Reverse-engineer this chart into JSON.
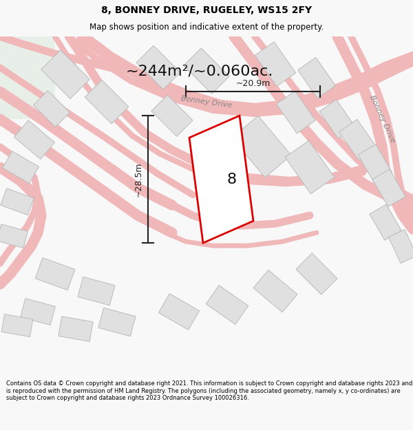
{
  "title": "8, BONNEY DRIVE, RUGELEY, WS15 2FY",
  "subtitle": "Map shows position and indicative extent of the property.",
  "area_text": "~244m²/~0.060ac.",
  "property_number": "8",
  "dim_vertical": "~28.5m",
  "dim_horizontal": "~20.9m",
  "road_label_bottom": "Bonney Drive",
  "road_label_right": "Bonney Drive",
  "footer": "Contains OS data © Crown copyright and database right 2021. This information is subject to Crown copyright and database rights 2023 and is reproduced with the permission of HM Land Registry. The polygons (including the associated geometry, namely x, y co-ordinates) are subject to Crown copyright and database rights 2023 Ordnance Survey 100026316.",
  "bg_color": "#f8f8f8",
  "map_bg": "#f5f3f3",
  "road_color": "#f0b8b8",
  "road_lw": 1.2,
  "building_fill": "#e0e0e0",
  "building_edge": "#bbbbbb",
  "highlight_color": "#dd0000",
  "highlight_lw": 2.0,
  "dim_color": "#222222",
  "text_color": "#000000",
  "road_text_color": "#888888",
  "green_patch_color": "#e8efe8"
}
